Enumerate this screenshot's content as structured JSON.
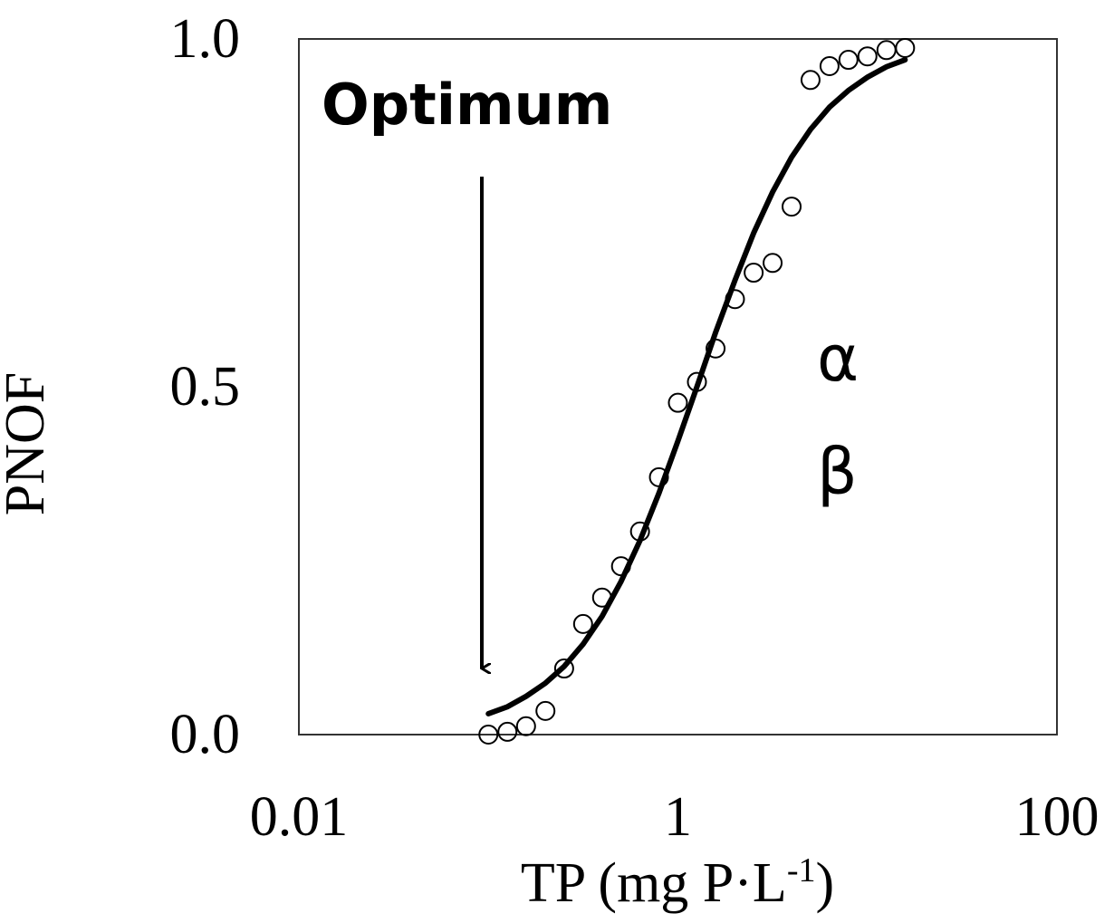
{
  "chart_data": {
    "type": "scatter",
    "x_label": {
      "text": "TP (mg P·L",
      "sup": "-1",
      "close": ")"
    },
    "y_label": "PNOF",
    "annotations": [
      "Optimum",
      "α",
      "β"
    ],
    "log_x": true,
    "xlim": [
      0.01,
      100
    ],
    "xticks": [
      0.01,
      1,
      100
    ],
    "ylim": [
      0,
      1
    ],
    "yticks": [
      {
        "value": 0,
        "label": "0.0"
      },
      {
        "value": 0.5,
        "label": "0.5"
      },
      {
        "value": 1,
        "label": "1.0"
      }
    ],
    "color": "#000000",
    "x": [
      0.1,
      0.126,
      0.158,
      0.2,
      0.251,
      0.316,
      0.398,
      0.501,
      0.631,
      0.794,
      1,
      1.26,
      1.58,
      2,
      2.51,
      3.16,
      3.98,
      5.01,
      6.31,
      7.94,
      10,
      12.6,
      15.8
    ],
    "values": [
      0,
      0.004,
      0.012,
      0.034,
      0.095,
      0.159,
      0.197,
      0.242,
      0.292,
      0.37,
      0.477,
      0.507,
      0.555,
      0.626,
      0.664,
      0.678,
      0.759,
      0.941,
      0.961,
      0.97,
      0.975,
      0.984,
      0.987
    ],
    "fit": {
      "x": [
        0.1,
        0.126,
        0.158,
        0.2,
        0.251,
        0.316,
        0.398,
        0.501,
        0.631,
        0.794,
        1,
        1.26,
        1.58,
        2,
        2.51,
        3.16,
        3.98,
        5.01,
        6.31,
        7.94,
        10,
        12.6,
        15.8
      ],
      "values": [
        0.03,
        0.04,
        0.055,
        0.074,
        0.098,
        0.13,
        0.17,
        0.22,
        0.279,
        0.347,
        0.422,
        0.5,
        0.578,
        0.653,
        0.721,
        0.78,
        0.83,
        0.87,
        0.902,
        0.926,
        0.945,
        0.96,
        0.97
      ]
    }
  }
}
